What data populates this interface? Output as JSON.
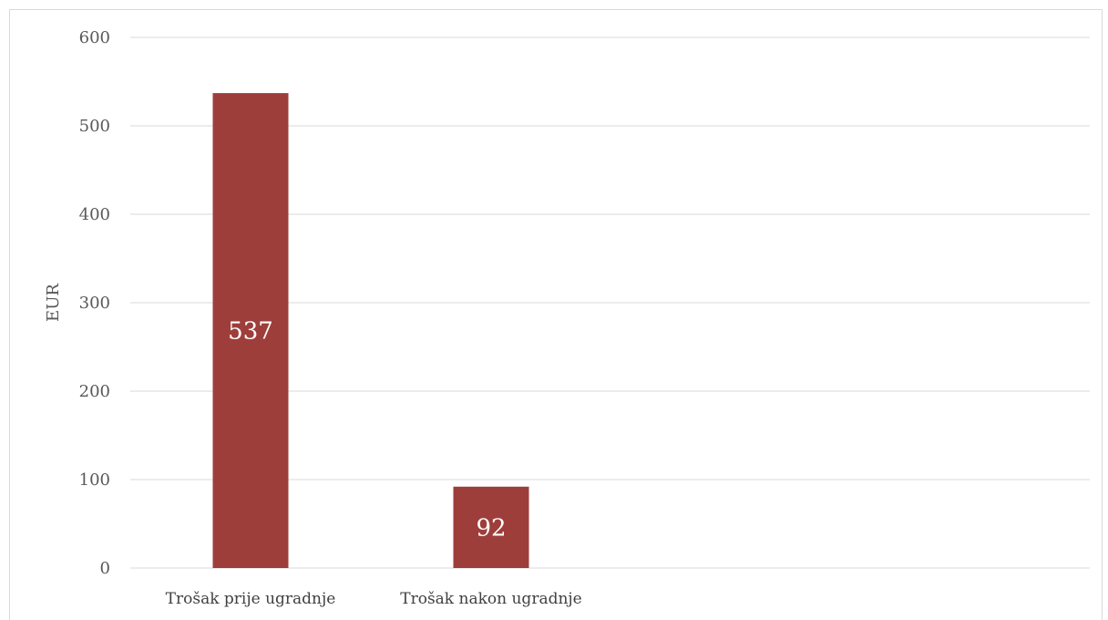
{
  "chart_data": {
    "type": "bar",
    "title": "",
    "xlabel": "",
    "ylabel": "EUR",
    "ylim": [
      0,
      600
    ],
    "yticks": [
      0,
      100,
      200,
      300,
      400,
      500,
      600
    ],
    "categories": [
      "Trošak prije ugradnje",
      "Trošak nakon ugradnje"
    ],
    "values": [
      537,
      92
    ],
    "data_labels": [
      "537",
      "92"
    ],
    "grid": true,
    "legend": "none",
    "bar_color": "#9e3e3b"
  }
}
